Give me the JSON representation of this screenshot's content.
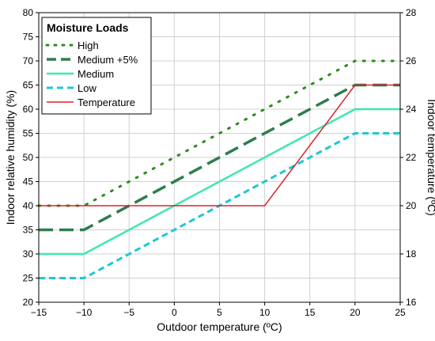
{
  "chart_data": {
    "type": "line",
    "xlabel": "Outdoor temperature (ºC)",
    "ylabel_left": "Indoor relative humidity (%)",
    "ylabel_right": "Indoor temperature (ºC)",
    "xlim": [
      -15,
      25
    ],
    "ylim_left": [
      20,
      80
    ],
    "ylim_right": [
      16,
      28
    ],
    "x_ticks": [
      -15,
      -10,
      -5,
      0,
      5,
      10,
      15,
      20,
      25
    ],
    "x_tick_labels": [
      "−15",
      "−10",
      "−5",
      "0",
      "5",
      "10",
      "15",
      "20",
      "25"
    ],
    "y_left_ticks": [
      20,
      25,
      30,
      35,
      40,
      45,
      50,
      55,
      60,
      65,
      70,
      75,
      80
    ],
    "y_left_tick_labels": [
      "20",
      "25",
      "30",
      "35",
      "40",
      "45",
      "50",
      "55",
      "60",
      "65",
      "70",
      "75",
      "80"
    ],
    "y_right_ticks": [
      16,
      18,
      20,
      22,
      24,
      26,
      28
    ],
    "y_right_tick_labels": [
      "16",
      "18",
      "20",
      "22",
      "24",
      "26",
      "28"
    ],
    "grid": true,
    "legend": {
      "title": "Moisture Loads",
      "placement": "top-left"
    },
    "series": [
      {
        "name": "High",
        "axis": "left",
        "color": "#2e8b1e",
        "dash": "dotted",
        "x": [
          -15,
          -10,
          20,
          25
        ],
        "y": [
          40,
          40,
          70,
          70
        ]
      },
      {
        "name": "Medium +5%",
        "axis": "left",
        "color": "#2e7d4f",
        "dash": "long-dash",
        "x": [
          -15,
          -10,
          20,
          25
        ],
        "y": [
          35,
          35,
          65,
          65
        ]
      },
      {
        "name": "Medium",
        "axis": "left",
        "color": "#3de8b4",
        "dash": "solid",
        "x": [
          -15,
          -10,
          20,
          25
        ],
        "y": [
          30,
          30,
          60,
          60
        ]
      },
      {
        "name": "Low",
        "axis": "left",
        "color": "#1ec8cf",
        "dash": "dash",
        "x": [
          -15,
          -10,
          20,
          25
        ],
        "y": [
          25,
          25,
          55,
          55
        ]
      },
      {
        "name": "Temperature",
        "axis": "right",
        "color": "#d8232a",
        "dash": "solid",
        "x": [
          -15,
          10,
          20,
          25
        ],
        "y": [
          20,
          20,
          25,
          25
        ]
      }
    ]
  }
}
